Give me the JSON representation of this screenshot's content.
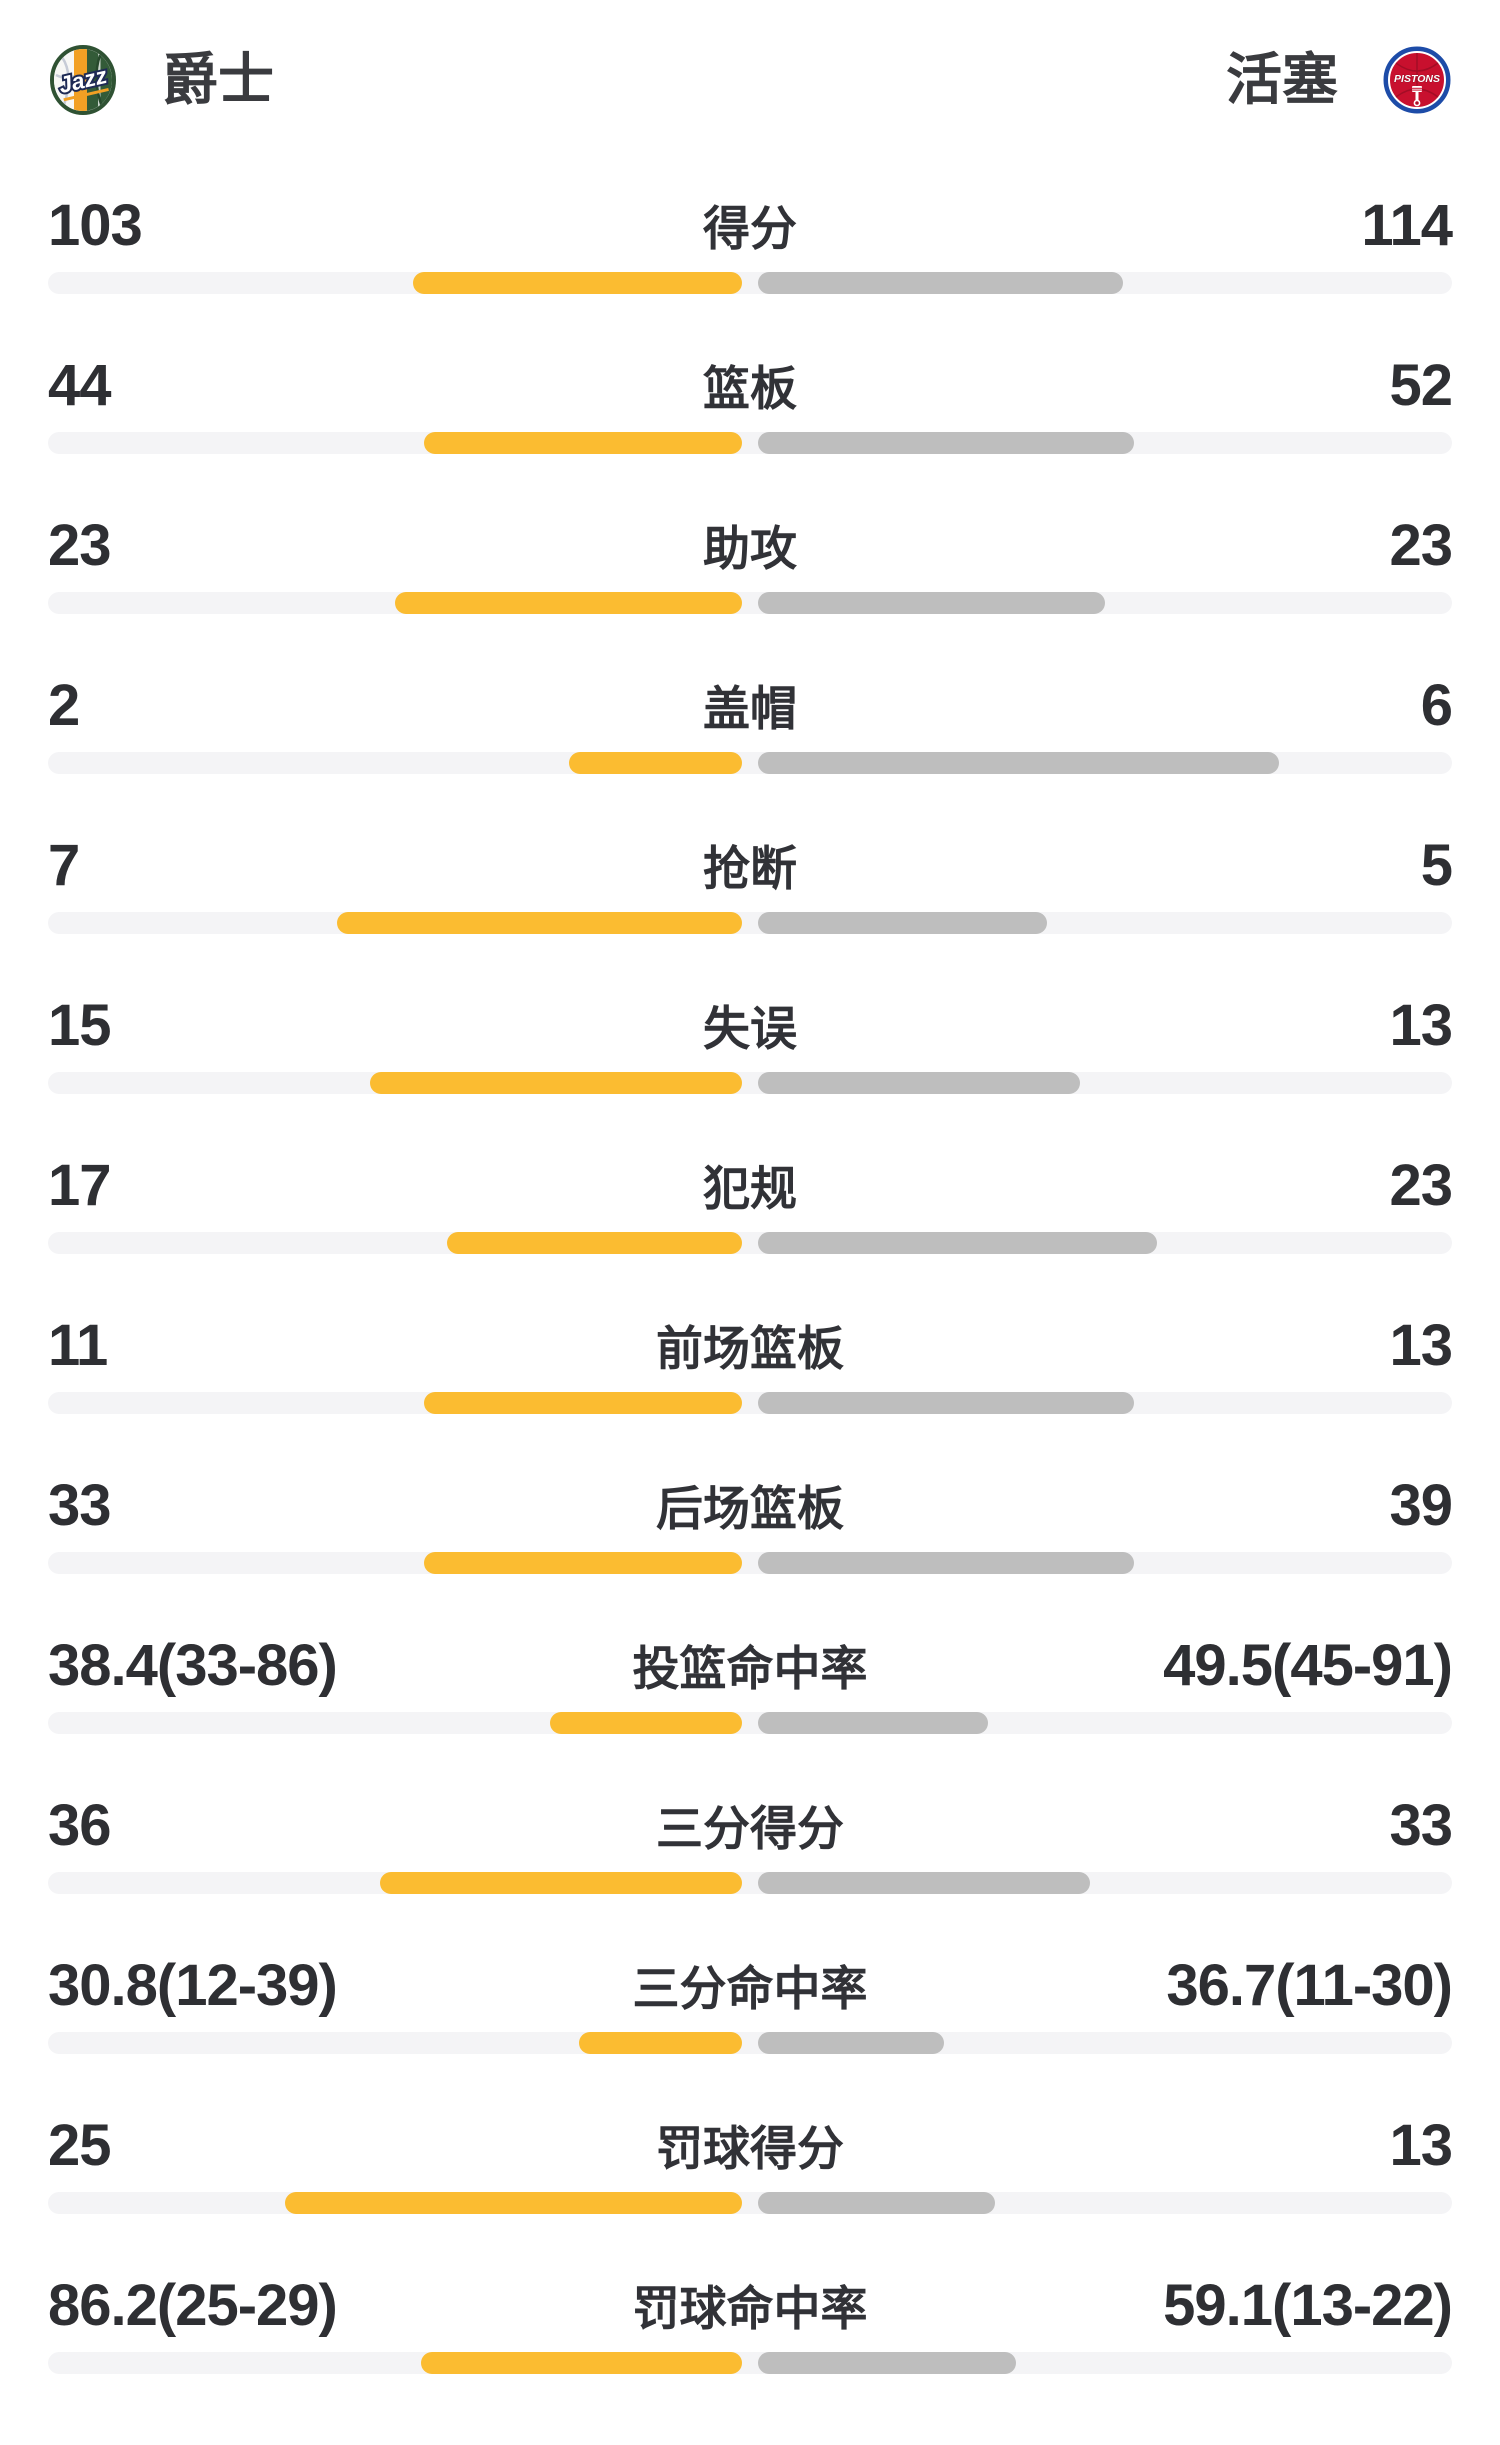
{
  "page": {
    "background": "#ffffff"
  },
  "colors": {
    "home_bar": "#FBBC31",
    "away_bar": "#BEBEBE",
    "track": "#F4F4F6",
    "value_text": "#2E2F33",
    "label_text": "#313237",
    "team_text": "#3A3B3F"
  },
  "header": {
    "home_team": {
      "name": "爵士",
      "logo_icon": "jazz-logo-icon"
    },
    "away_team": {
      "name": "活塞",
      "logo_icon": "pistons-logo-icon"
    }
  },
  "chart_data": {
    "type": "bar",
    "subtype": "tornado-comparison",
    "legend_position": "none",
    "teams": [
      "爵士",
      "活塞"
    ],
    "bar_scale_rule": "count rows: value/(home+away); percentage rows: made/(made+attempted)",
    "rows": [
      {
        "label": "得分",
        "home": {
          "text": "103",
          "value": 103
        },
        "away": {
          "text": "114",
          "value": 114
        }
      },
      {
        "label": "篮板",
        "home": {
          "text": "44",
          "value": 44
        },
        "away": {
          "text": "52",
          "value": 52
        }
      },
      {
        "label": "助攻",
        "home": {
          "text": "23",
          "value": 23
        },
        "away": {
          "text": "23",
          "value": 23
        }
      },
      {
        "label": "盖帽",
        "home": {
          "text": "2",
          "value": 2
        },
        "away": {
          "text": "6",
          "value": 6
        }
      },
      {
        "label": "抢断",
        "home": {
          "text": "7",
          "value": 7
        },
        "away": {
          "text": "5",
          "value": 5
        }
      },
      {
        "label": "失误",
        "home": {
          "text": "15",
          "value": 15
        },
        "away": {
          "text": "13",
          "value": 13
        }
      },
      {
        "label": "犯规",
        "home": {
          "text": "17",
          "value": 17
        },
        "away": {
          "text": "23",
          "value": 23
        }
      },
      {
        "label": "前场篮板",
        "home": {
          "text": "11",
          "value": 11
        },
        "away": {
          "text": "13",
          "value": 13
        }
      },
      {
        "label": "后场篮板",
        "home": {
          "text": "33",
          "value": 33
        },
        "away": {
          "text": "39",
          "value": 39
        }
      },
      {
        "label": "投篮命中率",
        "home": {
          "text": "38.4(33-86)",
          "value": 38.4,
          "made": 33,
          "attempted": 86
        },
        "away": {
          "text": "49.5(45-91)",
          "value": 49.5,
          "made": 45,
          "attempted": 91
        }
      },
      {
        "label": "三分得分",
        "home": {
          "text": "36",
          "value": 36
        },
        "away": {
          "text": "33",
          "value": 33
        }
      },
      {
        "label": "三分命中率",
        "home": {
          "text": "30.8(12-39)",
          "value": 30.8,
          "made": 12,
          "attempted": 39
        },
        "away": {
          "text": "36.7(11-30)",
          "value": 36.7,
          "made": 11,
          "attempted": 30
        }
      },
      {
        "label": "罚球得分",
        "home": {
          "text": "25",
          "value": 25
        },
        "away": {
          "text": "13",
          "value": 13
        }
      },
      {
        "label": "罚球命中率",
        "home": {
          "text": "86.2(25-29)",
          "value": 86.2,
          "made": 25,
          "attempted": 29
        },
        "away": {
          "text": "59.1(13-22)",
          "value": 59.1,
          "made": 13,
          "attempted": 22
        }
      }
    ]
  }
}
